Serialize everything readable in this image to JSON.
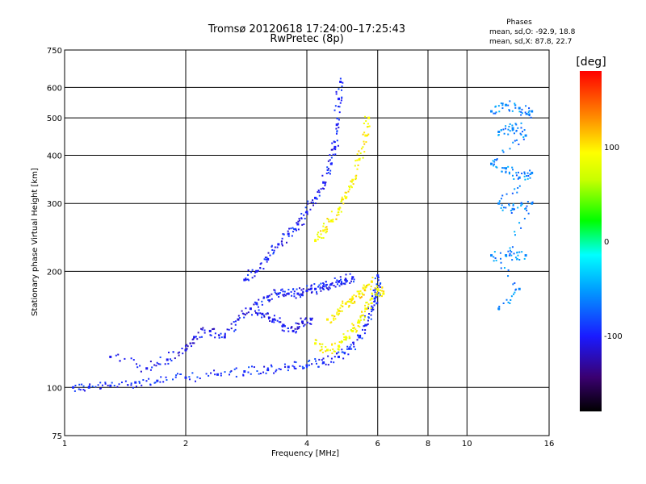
{
  "chart_data": {
    "type": "scatter",
    "title": "Tromsø 20120618 17:24:00–17:25:43",
    "subtitle": "RwPretec (8p)",
    "xlabel": "Frequency [MHz]",
    "ylabel": "Stationary phase Virtual Height [km]",
    "x_scale": "log",
    "y_scale": "log",
    "xlim": [
      1,
      16
    ],
    "ylim": [
      75,
      750
    ],
    "grid": true,
    "x_ticks": [
      {
        "v": 1,
        "label": "1"
      },
      {
        "v": 2,
        "label": "2"
      },
      {
        "v": 4,
        "label": "4"
      },
      {
        "v": 6,
        "label": "6"
      },
      {
        "v": 8,
        "label": "8"
      },
      {
        "v": 10,
        "label": "10"
      },
      {
        "v": 16,
        "label": "16"
      }
    ],
    "y_ticks": [
      {
        "v": 75,
        "label": "75"
      },
      {
        "v": 100,
        "label": "100"
      },
      {
        "v": 200,
        "label": "200"
      },
      {
        "v": 300,
        "label": "300"
      },
      {
        "v": 400,
        "label": "400"
      },
      {
        "v": 500,
        "label": "500"
      },
      {
        "v": 600,
        "label": "600"
      },
      {
        "v": 750,
        "label": "750"
      }
    ],
    "x_grid": [
      1,
      2,
      4,
      6,
      8,
      10,
      16
    ],
    "y_grid": [
      100,
      200,
      300,
      400,
      500,
      600
    ],
    "info": {
      "heading": "Phases",
      "line_o": "mean, sd,O: -92.9, 18.8",
      "line_x": "mean, sd,X:  87.8, 22.7"
    },
    "colorbar": {
      "label": "[deg]",
      "range": [
        -180,
        180
      ],
      "ticks": [
        {
          "v": 100,
          "label": "100"
        },
        {
          "v": 0,
          "label": "0"
        },
        {
          "v": -100,
          "label": "-100"
        }
      ]
    },
    "traces": [
      {
        "name": "lower-trace-O",
        "phase": -95,
        "points": [
          [
            1.05,
            100
          ],
          [
            1.15,
            100
          ],
          [
            1.3,
            101
          ],
          [
            1.5,
            103
          ],
          [
            1.7,
            104
          ],
          [
            2.0,
            106
          ],
          [
            2.4,
            108
          ],
          [
            2.8,
            110
          ],
          [
            3.2,
            111
          ],
          [
            3.6,
            113
          ],
          [
            4.0,
            114
          ],
          [
            4.4,
            116
          ],
          [
            4.8,
            120
          ],
          [
            5.1,
            126
          ],
          [
            5.4,
            135
          ],
          [
            5.6,
            145
          ],
          [
            5.8,
            160
          ],
          [
            5.9,
            170
          ],
          [
            6.0,
            180
          ],
          [
            6.0,
            195
          ]
        ]
      },
      {
        "name": "diffuse-spread-O",
        "phase": -105,
        "points": [
          [
            1.3,
            120
          ],
          [
            1.6,
            112
          ],
          [
            1.8,
            118
          ],
          [
            2.0,
            125
          ],
          [
            2.1,
            135
          ],
          [
            2.3,
            140
          ],
          [
            2.5,
            135
          ],
          [
            2.7,
            150
          ],
          [
            2.9,
            160
          ],
          [
            3.1,
            155
          ],
          [
            3.3,
            150
          ],
          [
            3.5,
            145
          ],
          [
            3.7,
            140
          ],
          [
            3.9,
            148
          ],
          [
            4.1,
            150
          ]
        ]
      },
      {
        "name": "mid-trace-O",
        "phase": -100,
        "points": [
          [
            3.0,
            165
          ],
          [
            3.2,
            172
          ],
          [
            3.4,
            175
          ],
          [
            3.6,
            175
          ],
          [
            3.8,
            175
          ],
          [
            4.0,
            178
          ],
          [
            4.2,
            180
          ],
          [
            4.4,
            183
          ],
          [
            4.6,
            185
          ],
          [
            4.8,
            188
          ],
          [
            5.0,
            190
          ],
          [
            5.2,
            193
          ]
        ]
      },
      {
        "name": "upper-trace-O",
        "phase": -100,
        "points": [
          [
            2.8,
            190
          ],
          [
            3.0,
            200
          ],
          [
            3.2,
            215
          ],
          [
            3.4,
            235
          ],
          [
            3.6,
            250
          ],
          [
            3.8,
            265
          ],
          [
            4.0,
            285
          ],
          [
            4.2,
            310
          ],
          [
            4.4,
            340
          ],
          [
            4.6,
            380
          ],
          [
            4.7,
            420
          ],
          [
            4.75,
            480
          ],
          [
            4.8,
            560
          ],
          [
            4.85,
            620
          ]
        ]
      },
      {
        "name": "upper-trace-X",
        "phase": 95,
        "points": [
          [
            4.2,
            240
          ],
          [
            4.4,
            255
          ],
          [
            4.6,
            270
          ],
          [
            4.8,
            290
          ],
          [
            5.0,
            310
          ],
          [
            5.2,
            345
          ],
          [
            5.4,
            390
          ],
          [
            5.6,
            450
          ],
          [
            5.7,
            500
          ]
        ]
      },
      {
        "name": "mid-trace-X",
        "phase": 90,
        "points": [
          [
            4.2,
            130
          ],
          [
            4.5,
            125
          ],
          [
            4.8,
            128
          ],
          [
            5.0,
            135
          ],
          [
            5.2,
            140
          ],
          [
            5.4,
            148
          ],
          [
            5.6,
            160
          ],
          [
            5.8,
            170
          ],
          [
            6.0,
            180
          ],
          [
            6.2,
            175
          ]
        ]
      },
      {
        "name": "mid-spread-X",
        "phase": 100,
        "points": [
          [
            4.5,
            150
          ],
          [
            4.8,
            158
          ],
          [
            5.0,
            165
          ],
          [
            5.2,
            170
          ],
          [
            5.4,
            175
          ],
          [
            5.6,
            182
          ],
          [
            5.8,
            188
          ]
        ]
      },
      {
        "name": "scattered-cluster",
        "phase": -60,
        "points": [
          [
            11.5,
            520
          ],
          [
            12.5,
            540
          ],
          [
            13.5,
            530
          ],
          [
            14.5,
            520
          ],
          [
            12.0,
            460
          ],
          [
            13.0,
            470
          ],
          [
            14.0,
            450
          ],
          [
            11.5,
            380
          ],
          [
            12.5,
            370
          ],
          [
            13.5,
            350
          ],
          [
            14.5,
            360
          ],
          [
            12.0,
            300
          ],
          [
            13.0,
            290
          ],
          [
            14.5,
            300
          ],
          [
            12.5,
            220
          ],
          [
            14.0,
            220
          ],
          [
            11.5,
            220
          ],
          [
            13.5,
            180
          ],
          [
            12.0,
            160
          ]
        ]
      }
    ]
  }
}
